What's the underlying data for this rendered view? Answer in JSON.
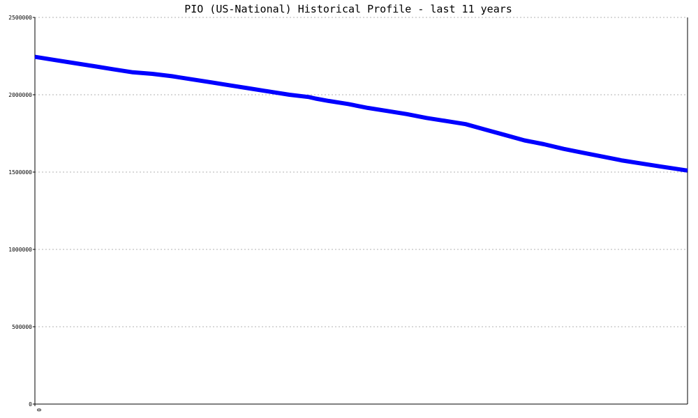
{
  "chart_data": {
    "type": "line",
    "title": "PIO (US-National) Historical Profile - last 11 years",
    "xlabel": "",
    "ylabel": "",
    "ylim": [
      0,
      2500000
    ],
    "yticks": [
      "0",
      "500000",
      "1000000",
      "1500000",
      "2000000",
      "2500000"
    ],
    "xticks": [
      "0"
    ],
    "grid": true,
    "series": [
      {
        "color": "#0000ff",
        "x": [
          0,
          0.03,
          0.06,
          0.09,
          0.12,
          0.15,
          0.18,
          0.21,
          0.24,
          0.27,
          0.3,
          0.33,
          0.36,
          0.39,
          0.42,
          0.43,
          0.45,
          0.48,
          0.51,
          0.54,
          0.57,
          0.6,
          0.63,
          0.66,
          0.69,
          0.72,
          0.75,
          0.78,
          0.81,
          0.84,
          0.87,
          0.9,
          0.93,
          0.96,
          1.0
        ],
        "values": [
          2245000,
          2225000,
          2205000,
          2185000,
          2165000,
          2145000,
          2135000,
          2120000,
          2100000,
          2080000,
          2060000,
          2040000,
          2020000,
          2000000,
          1985000,
          1975000,
          1960000,
          1940000,
          1915000,
          1895000,
          1875000,
          1850000,
          1830000,
          1810000,
          1775000,
          1740000,
          1705000,
          1680000,
          1650000,
          1625000,
          1600000,
          1575000,
          1555000,
          1535000,
          1510000
        ]
      }
    ]
  }
}
